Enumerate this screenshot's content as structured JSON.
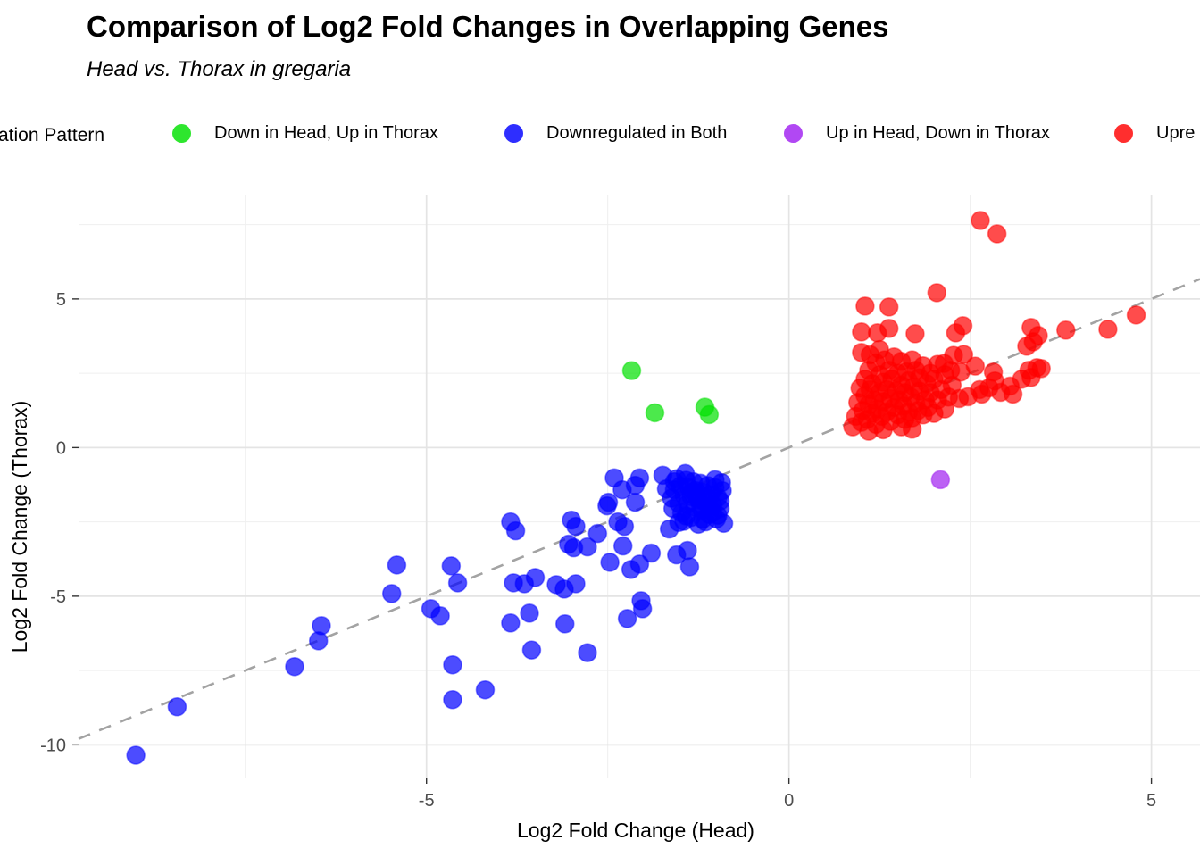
{
  "title": "Comparison of Log2 Fold Changes in Overlapping Genes",
  "subtitle": "Head vs. Thorax in gregaria",
  "legend": {
    "title": "ation Pattern",
    "items": [
      {
        "label": "Down in Head, Up in Thorax",
        "color": "#00E000"
      },
      {
        "label": "Downregulated in Both",
        "color": "#0000FF"
      },
      {
        "label": "Up in Head, Down in Thorax",
        "color": "#A020F0"
      },
      {
        "label": "Upre",
        "color": "#FF0000"
      }
    ]
  },
  "chart_data": {
    "type": "scatter",
    "title": "Comparison of Log2 Fold Changes in Overlapping Genes",
    "subtitle": "Head vs. Thorax in gregaria",
    "xlabel": "Log2 Fold Change (Head)",
    "ylabel": "Log2 Fold Change (Thorax)",
    "x_ticks": [
      -5,
      0,
      5
    ],
    "y_ticks": [
      -10,
      -5,
      0,
      5
    ],
    "x_minor_ticks": [
      -7.5,
      -2.5,
      2.5
    ],
    "y_minor_ticks": [
      -7.5,
      -2.5,
      2.5,
      7.5
    ],
    "xlim": [
      -9.8,
      5.67
    ],
    "ylim": [
      -11.1,
      8.51
    ],
    "grid": "major and minor light gray gridlines on white panel",
    "legend_position": "top",
    "reference_line": {
      "type": "identity y=x",
      "style": "dashed",
      "color": "#a3a3a3"
    },
    "point_radius_px": 10,
    "point_alpha": 0.7,
    "series": [
      {
        "name": "Down in Head, Up in Thorax",
        "color": "#00E000",
        "points": [
          [
            -2.17,
            2.59
          ],
          [
            -1.85,
            1.17
          ],
          [
            -1.16,
            1.36
          ],
          [
            -1.1,
            1.11
          ]
        ]
      },
      {
        "name": "Downregulated in Both",
        "color": "#0000FF",
        "points": [
          [
            -9.01,
            -10.35
          ],
          [
            -8.44,
            -8.72
          ],
          [
            -6.82,
            -7.37
          ],
          [
            -6.49,
            -6.5
          ],
          [
            -6.45,
            -5.99
          ],
          [
            -5.48,
            -4.91
          ],
          [
            -5.41,
            -3.95
          ],
          [
            -4.94,
            -5.42
          ],
          [
            -4.81,
            -5.66
          ],
          [
            -4.66,
            -3.98
          ],
          [
            -4.57,
            -4.55
          ],
          [
            -4.64,
            -7.31
          ],
          [
            -4.64,
            -8.48
          ],
          [
            -4.19,
            -8.15
          ],
          [
            -3.84,
            -5.9
          ],
          [
            -3.58,
            -5.57
          ],
          [
            -3.55,
            -6.81
          ],
          [
            -3.09,
            -5.93
          ],
          [
            -2.78,
            -6.9
          ],
          [
            -2.23,
            -5.75
          ],
          [
            -2.02,
            -5.42
          ],
          [
            -2.04,
            -5.15
          ],
          [
            -3.8,
            -4.55
          ],
          [
            -3.65,
            -4.58
          ],
          [
            -3.5,
            -4.37
          ],
          [
            -3.21,
            -4.61
          ],
          [
            -3.1,
            -4.76
          ],
          [
            -2.94,
            -4.58
          ],
          [
            -3.84,
            -2.5
          ],
          [
            -3.77,
            -2.8
          ],
          [
            -3.0,
            -2.44
          ],
          [
            -2.94,
            -2.65
          ],
          [
            -3.04,
            -3.25
          ],
          [
            -2.97,
            -3.37
          ],
          [
            -2.78,
            -3.34
          ],
          [
            -2.64,
            -2.89
          ],
          [
            -2.51,
            -1.96
          ],
          [
            -2.36,
            -2.5
          ],
          [
            -2.27,
            -2.65
          ],
          [
            -2.47,
            -3.86
          ],
          [
            -2.29,
            -3.31
          ],
          [
            -2.18,
            -4.1
          ],
          [
            -2.06,
            -3.92
          ],
          [
            -1.9,
            -3.55
          ],
          [
            -1.65,
            -2.74
          ],
          [
            -1.55,
            -3.61
          ],
          [
            -1.4,
            -3.46
          ],
          [
            -1.37,
            -4.01
          ],
          [
            -1.19,
            -2.41
          ],
          [
            -2.41,
            -1.02
          ],
          [
            -2.3,
            -1.42
          ],
          [
            -2.12,
            -1.27
          ],
          [
            -2.06,
            -1.02
          ],
          [
            -1.74,
            -0.93
          ],
          [
            -1.69,
            -1.39
          ],
          [
            -1.43,
            -0.87
          ],
          [
            -2.49,
            -1.84
          ],
          [
            -2.12,
            -1.84
          ],
          [
            -1.55,
            -1.05
          ],
          [
            -1.5,
            -1.3
          ],
          [
            -1.45,
            -1.6
          ],
          [
            -1.42,
            -1.1
          ],
          [
            -1.4,
            -1.9
          ],
          [
            -1.38,
            -1.35
          ],
          [
            -1.35,
            -1.65
          ],
          [
            -1.32,
            -1.15
          ],
          [
            -1.3,
            -2.0
          ],
          [
            -1.28,
            -1.45
          ],
          [
            -1.25,
            -1.75
          ],
          [
            -1.22,
            -1.2
          ],
          [
            -1.2,
            -2.1
          ],
          [
            -1.18,
            -1.5
          ],
          [
            -1.15,
            -1.85
          ],
          [
            -1.12,
            -1.28
          ],
          [
            -1.1,
            -2.25
          ],
          [
            -1.08,
            -1.58
          ],
          [
            -1.05,
            -1.95
          ],
          [
            -1.02,
            -1.35
          ],
          [
            -1.0,
            -2.4
          ],
          [
            -0.98,
            -1.68
          ],
          [
            -0.95,
            -2.05
          ],
          [
            -0.92,
            -1.45
          ],
          [
            -0.9,
            -2.55
          ],
          [
            -1.48,
            -2.2
          ],
          [
            -1.52,
            -1.88
          ],
          [
            -1.58,
            -1.42
          ],
          [
            -1.6,
            -2.05
          ],
          [
            -1.35,
            -2.35
          ],
          [
            -1.15,
            -2.5
          ],
          [
            -1.05,
            -2.18
          ],
          [
            -0.95,
            -1.8
          ],
          [
            -1.25,
            -2.58
          ],
          [
            -1.45,
            -2.48
          ],
          [
            -0.93,
            -1.18
          ],
          [
            -1.02,
            -1.08
          ],
          [
            -1.12,
            -1.72
          ],
          [
            -1.22,
            -1.95
          ],
          [
            -1.32,
            -1.48
          ],
          [
            -1.42,
            -2.3
          ],
          [
            -1.52,
            -2.52
          ],
          [
            -1.62,
            -1.7
          ],
          [
            -1.58,
            -1.15
          ],
          [
            -0.98,
            -2.28
          ]
        ]
      },
      {
        "name": "Up in Head, Down in Thorax",
        "color": "#A020F0",
        "points": [
          [
            2.09,
            -1.08
          ]
        ]
      },
      {
        "name": "Upregulated in Both",
        "color": "#FF0000",
        "points": [
          [
            2.64,
            7.64
          ],
          [
            2.87,
            7.19
          ],
          [
            2.04,
            5.21
          ],
          [
            1.05,
            4.76
          ],
          [
            1.38,
            4.73
          ],
          [
            1.0,
            3.89
          ],
          [
            1.22,
            3.86
          ],
          [
            1.38,
            4.01
          ],
          [
            1.74,
            3.83
          ],
          [
            2.3,
            3.86
          ],
          [
            2.4,
            4.1
          ],
          [
            3.34,
            4.04
          ],
          [
            3.44,
            3.77
          ],
          [
            3.82,
            3.95
          ],
          [
            4.4,
            3.98
          ],
          [
            4.79,
            4.46
          ],
          [
            3.28,
            3.41
          ],
          [
            3.37,
            3.56
          ],
          [
            3.31,
            2.6
          ],
          [
            3.42,
            2.69
          ],
          [
            3.21,
            2.3
          ],
          [
            3.34,
            2.36
          ],
          [
            3.48,
            2.66
          ],
          [
            2.27,
            3.1
          ],
          [
            2.41,
            3.13
          ],
          [
            2.23,
            2.6
          ],
          [
            2.37,
            2.54
          ],
          [
            2.14,
            2.83
          ],
          [
            2.57,
            2.74
          ],
          [
            2.82,
            2.54
          ],
          [
            2.84,
            2.24
          ],
          [
            2.76,
            2.01
          ],
          [
            2.63,
            1.95
          ],
          [
            2.66,
            1.8
          ],
          [
            2.47,
            1.71
          ],
          [
            2.35,
            1.65
          ],
          [
            2.92,
            1.86
          ],
          [
            3.05,
            2.07
          ],
          [
            3.09,
            1.8
          ],
          [
            0.92,
            1.05
          ],
          [
            0.95,
            1.52
          ],
          [
            0.98,
            2.0
          ],
          [
            1.0,
            0.85
          ],
          [
            1.02,
            1.25
          ],
          [
            1.05,
            1.75
          ],
          [
            1.05,
            2.3
          ],
          [
            1.08,
            0.95
          ],
          [
            1.1,
            1.45
          ],
          [
            1.1,
            2.6
          ],
          [
            1.12,
            1.95
          ],
          [
            1.15,
            1.15
          ],
          [
            1.15,
            2.15
          ],
          [
            1.18,
            1.6
          ],
          [
            1.2,
            0.78
          ],
          [
            1.2,
            2.85
          ],
          [
            1.22,
            1.3
          ],
          [
            1.25,
            1.85
          ],
          [
            1.25,
            2.45
          ],
          [
            1.28,
            1.05
          ],
          [
            1.3,
            1.55
          ],
          [
            1.3,
            2.2
          ],
          [
            1.32,
            2.95
          ],
          [
            1.35,
            1.2
          ],
          [
            1.35,
            1.95
          ],
          [
            1.38,
            2.6
          ],
          [
            1.4,
            0.88
          ],
          [
            1.4,
            1.65
          ],
          [
            1.42,
            2.3
          ],
          [
            1.45,
            1.35
          ],
          [
            1.45,
            3.05
          ],
          [
            1.48,
            1.9
          ],
          [
            1.5,
            1.1
          ],
          [
            1.5,
            2.5
          ],
          [
            1.52,
            1.6
          ],
          [
            1.55,
            2.1
          ],
          [
            1.55,
            2.9
          ],
          [
            1.58,
            1.4
          ],
          [
            1.6,
            0.95
          ],
          [
            1.6,
            1.85
          ],
          [
            1.62,
            2.55
          ],
          [
            1.65,
            1.2
          ],
          [
            1.65,
            2.25
          ],
          [
            1.68,
            1.7
          ],
          [
            1.7,
            1.0
          ],
          [
            1.7,
            2.95
          ],
          [
            1.72,
            2.05
          ],
          [
            1.75,
            1.5
          ],
          [
            1.75,
            2.6
          ],
          [
            1.78,
            1.25
          ],
          [
            1.8,
            1.9
          ],
          [
            1.8,
            2.35
          ],
          [
            1.85,
            1.1
          ],
          [
            1.85,
            2.75
          ],
          [
            1.88,
            1.6
          ],
          [
            1.9,
            2.15
          ],
          [
            1.92,
            1.35
          ],
          [
            1.95,
            1.85
          ],
          [
            1.95,
            2.5
          ],
          [
            2.0,
            1.15
          ],
          [
            2.0,
            2.3
          ],
          [
            2.05,
            1.6
          ],
          [
            2.05,
            2.8
          ],
          [
            2.1,
            1.95
          ],
          [
            2.15,
            1.3
          ],
          [
            2.15,
            2.45
          ],
          [
            2.2,
            1.7
          ],
          [
            2.25,
            2.1
          ],
          [
            0.88,
            0.7
          ],
          [
            1.3,
            0.6
          ],
          [
            1.55,
            0.7
          ],
          [
            1.0,
            3.2
          ],
          [
            1.25,
            3.3
          ],
          [
            1.1,
            0.55
          ],
          [
            1.7,
            0.62
          ],
          [
            1.12,
            3.12
          ]
        ]
      }
    ]
  },
  "colors": {
    "grid_major": "#e4e4e4",
    "grid_minor": "#efefef",
    "tick_text": "#4d4d4d",
    "reference_line": "#a3a3a3"
  }
}
